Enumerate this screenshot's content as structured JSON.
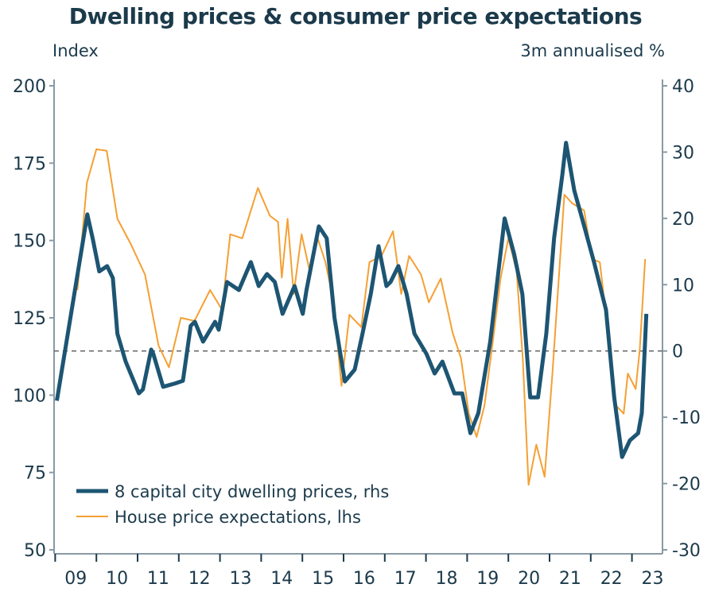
{
  "chart_data": {
    "type": "line",
    "title": "Dwelling prices & consumer price expectations",
    "ylabel_left": "Index",
    "ylabel_right": "3m annualised %",
    "ylim_left": [
      50,
      200
    ],
    "ylim_right": [
      -30,
      40
    ],
    "yticks_left": [
      50,
      75,
      100,
      125,
      150,
      175,
      200
    ],
    "yticks_right": [
      -30,
      -20,
      -10,
      0,
      10,
      20,
      30,
      40
    ],
    "xlim": [
      2009,
      2023.75
    ],
    "xtick_labels": [
      "09",
      "10",
      "11",
      "12",
      "13",
      "14",
      "15",
      "16",
      "17",
      "18",
      "19",
      "20",
      "21",
      "22",
      "23"
    ],
    "grid": false,
    "zero_line": "dashed at rhs 0",
    "legend_placement": "bottom-left",
    "series": [
      {
        "name": "8 capital city dwelling prices, rhs",
        "axis": "right",
        "color": "#1d5573",
        "x": [
          2009.04,
          2009.78,
          2009.91,
          2010.07,
          2010.26,
          2010.4,
          2010.51,
          2010.71,
          2011.03,
          2011.13,
          2011.33,
          2011.38,
          2011.62,
          2011.91,
          2012.1,
          2012.29,
          2012.39,
          2012.59,
          2012.88,
          2012.97,
          2013.17,
          2013.46,
          2013.75,
          2013.94,
          2014.14,
          2014.33,
          2014.52,
          2014.81,
          2015.01,
          2015.1,
          2015.4,
          2015.59,
          2015.78,
          2016.03,
          2016.27,
          2016.46,
          2016.66,
          2016.85,
          2017.04,
          2017.14,
          2017.33,
          2017.53,
          2017.72,
          2018.01,
          2018.21,
          2018.4,
          2018.69,
          2018.88,
          2019.08,
          2019.27,
          2019.56,
          2019.91,
          2020.14,
          2020.34,
          2020.53,
          2020.72,
          2020.92,
          2021.11,
          2021.31,
          2021.4,
          2021.6,
          2021.79,
          2022.08,
          2022.37,
          2022.57,
          2022.76,
          2022.95,
          2023.15,
          2023.24,
          2023.35
        ],
        "y": [
          -7.5,
          20.6,
          17,
          12,
          12.8,
          11,
          2.6,
          -1.6,
          -6.4,
          -5.8,
          0.2,
          -0.4,
          -5.4,
          -4.9,
          -4.5,
          3.8,
          4.4,
          1.4,
          4.4,
          3.2,
          10.4,
          9.2,
          13.4,
          9.8,
          11.6,
          10.4,
          5.6,
          9.8,
          5.6,
          9.2,
          18.8,
          17,
          5,
          -4.6,
          -2.8,
          2.6,
          8.6,
          15.8,
          9.8,
          10.4,
          12.8,
          8.6,
          2.6,
          -0.4,
          -3.4,
          -1.6,
          -6.4,
          -6.4,
          -12.4,
          -9.4,
          1.4,
          20,
          14.6,
          8.6,
          -7,
          -7,
          2.6,
          17,
          26.6,
          31.4,
          24.2,
          20,
          13.4,
          6.2,
          -7,
          -16,
          -13.5,
          -12.4,
          -9.4,
          5.6
        ]
      },
      {
        "name": "House price expectations, lhs",
        "axis": "left",
        "color": "#f5a033",
        "x": [
          2009.54,
          2009.77,
          2010.0,
          2010.25,
          2010.51,
          2010.83,
          2011.18,
          2011.51,
          2011.76,
          2012.05,
          2012.38,
          2012.76,
          2013.05,
          2013.25,
          2013.54,
          2013.92,
          2014.21,
          2014.41,
          2014.5,
          2014.64,
          2014.79,
          2014.98,
          2015.18,
          2015.37,
          2015.56,
          2015.76,
          2015.95,
          2016.14,
          2016.43,
          2016.63,
          2016.92,
          2017.2,
          2017.4,
          2017.59,
          2017.88,
          2018.07,
          2018.36,
          2018.65,
          2018.85,
          2019.04,
          2019.23,
          2019.42,
          2019.62,
          2019.81,
          2020.0,
          2020.2,
          2020.35,
          2020.49,
          2020.68,
          2020.88,
          2021.07,
          2021.26,
          2021.36,
          2021.55,
          2021.84,
          2022.03,
          2022.22,
          2022.42,
          2022.61,
          2022.8,
          2022.9,
          2023.09,
          2023.19,
          2023.32
        ],
        "y": [
          134,
          168.7,
          179.5,
          179,
          157,
          149,
          139,
          116,
          109,
          125,
          124,
          134,
          127.6,
          152,
          150.7,
          167,
          158,
          156,
          138,
          157,
          132.7,
          152,
          140,
          150.7,
          143,
          130,
          103,
          126,
          122,
          143,
          145,
          153,
          132.7,
          145,
          139,
          130,
          137.7,
          120,
          112,
          94,
          86.5,
          96.7,
          117,
          137.7,
          150.7,
          140,
          112,
          71,
          84,
          73.6,
          107,
          145,
          164.8,
          162,
          159.7,
          144,
          143,
          120,
          96.7,
          94,
          107,
          102,
          114.6,
          144
        ]
      }
    ]
  }
}
